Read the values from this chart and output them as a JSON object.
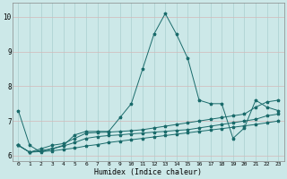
{
  "xlabel": "Humidex (Indice chaleur)",
  "xlim": [
    -0.5,
    23.5
  ],
  "ylim": [
    5.85,
    10.4
  ],
  "yticks": [
    6,
    7,
    8,
    9,
    10
  ],
  "xticks": [
    0,
    1,
    2,
    3,
    4,
    5,
    6,
    7,
    8,
    9,
    10,
    11,
    12,
    13,
    14,
    15,
    16,
    17,
    18,
    19,
    20,
    21,
    22,
    23
  ],
  "bg_color": "#cce8e8",
  "line_color": "#1a6b6b",
  "vgrid_color": "#aacfcf",
  "hgrid_color": "#d4b8b8",
  "lines": [
    [
      7.3,
      6.3,
      6.1,
      6.2,
      6.3,
      6.6,
      6.7,
      6.7,
      6.7,
      7.1,
      7.5,
      8.5,
      9.5,
      10.1,
      9.5,
      8.8,
      7.6,
      7.5,
      7.5,
      6.5,
      6.8,
      7.6,
      7.4,
      7.3
    ],
    [
      6.3,
      6.1,
      6.2,
      6.3,
      6.35,
      6.5,
      6.65,
      6.67,
      6.68,
      6.7,
      6.72,
      6.75,
      6.8,
      6.85,
      6.9,
      6.95,
      7.0,
      7.05,
      7.1,
      7.15,
      7.2,
      7.4,
      7.55,
      7.6
    ],
    [
      6.3,
      6.1,
      6.15,
      6.2,
      6.28,
      6.38,
      6.5,
      6.55,
      6.58,
      6.6,
      6.63,
      6.65,
      6.68,
      6.7,
      6.73,
      6.75,
      6.8,
      6.85,
      6.9,
      6.95,
      7.0,
      7.05,
      7.15,
      7.2
    ],
    [
      6.3,
      6.1,
      6.12,
      6.14,
      6.18,
      6.22,
      6.28,
      6.32,
      6.38,
      6.42,
      6.46,
      6.5,
      6.54,
      6.58,
      6.62,
      6.66,
      6.7,
      6.74,
      6.78,
      6.82,
      6.86,
      6.9,
      6.95,
      7.0
    ]
  ]
}
